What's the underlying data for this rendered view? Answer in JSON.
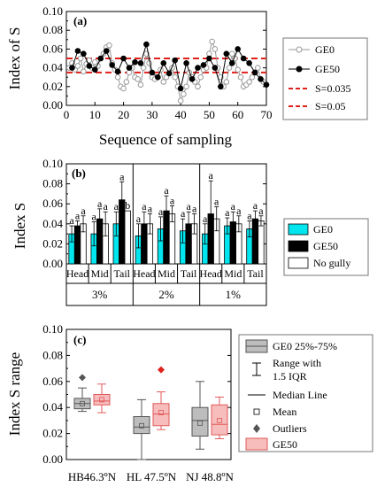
{
  "chart_data": [
    {
      "type": "scatter",
      "panel_label": "(a)",
      "xlabel": "Sequence of sampling",
      "ylabel": "Index of S",
      "xlim": [
        0,
        70
      ],
      "ylim": [
        0,
        0.1
      ],
      "xticks": [
        "0",
        "10",
        "20",
        "30",
        "40",
        "50",
        "60",
        "70"
      ],
      "yticks": [
        "0.00",
        "0.02",
        "0.04",
        "0.06",
        "0.08",
        "0.10"
      ],
      "series": [
        {
          "name": "GE0",
          "marker": "open-circle",
          "x": [
            1,
            2,
            3,
            4,
            5,
            6,
            7,
            8,
            9,
            10,
            11,
            12,
            13,
            14,
            15,
            16,
            17,
            18,
            19,
            20,
            21,
            22,
            23,
            24,
            25,
            26,
            27,
            28,
            29,
            30,
            31,
            32,
            33,
            34,
            35,
            36,
            37,
            38,
            39,
            40,
            41,
            42,
            43,
            44,
            45,
            46,
            47,
            48,
            49,
            50,
            51,
            52,
            53,
            54,
            55,
            56,
            57,
            58,
            59,
            60,
            61,
            62,
            63,
            64,
            65,
            66,
            67,
            68,
            69
          ],
          "y": [
            0.04,
            0.045,
            0.038,
            0.042,
            0.05,
            0.036,
            0.044,
            0.048,
            0.04,
            0.046,
            0.042,
            0.05,
            0.055,
            0.062,
            0.064,
            0.045,
            0.038,
            0.03,
            0.02,
            0.018,
            0.025,
            0.035,
            0.04,
            0.03,
            0.028,
            0.022,
            0.04,
            0.055,
            0.045,
            0.03,
            0.028,
            0.03,
            0.038,
            0.025,
            0.03,
            0.035,
            0.04,
            0.03,
            0.02,
            0.005,
            0.012,
            0.02,
            0.035,
            0.03,
            0.025,
            0.02,
            0.03,
            0.038,
            0.04,
            0.055,
            0.068,
            0.06,
            0.04,
            0.03,
            0.02,
            0.025,
            0.04,
            0.055,
            0.05,
            0.038,
            0.03,
            0.02,
            0.022,
            0.025,
            0.03,
            0.035,
            0.04,
            0.028,
            0.025
          ]
        },
        {
          "name": "GE50",
          "marker": "filled-circle",
          "x": [
            2,
            4,
            6,
            8,
            10,
            12,
            14,
            16,
            18,
            20,
            22,
            24,
            26,
            28,
            30,
            32,
            34,
            36,
            38,
            40,
            42,
            44,
            46,
            48,
            50,
            52,
            54,
            56,
            58,
            60,
            62,
            64,
            66,
            68,
            70
          ],
          "y": [
            0.04,
            0.058,
            0.055,
            0.042,
            0.038,
            0.05,
            0.058,
            0.043,
            0.036,
            0.05,
            0.04,
            0.046,
            0.045,
            0.065,
            0.035,
            0.03,
            0.045,
            0.034,
            0.048,
            0.018,
            0.045,
            0.028,
            0.04,
            0.043,
            0.05,
            0.04,
            0.02,
            0.055,
            0.045,
            0.06,
            0.05,
            0.045,
            0.035,
            0.028,
            0.022
          ]
        }
      ],
      "reference_lines": [
        {
          "name": "S=0.035",
          "y": 0.035,
          "style": "dashed",
          "color": "#e0201b"
        },
        {
          "name": "S=0.05",
          "y": 0.05,
          "style": "dashed",
          "color": "#e0201b"
        }
      ],
      "legend": {
        "placement": "right",
        "entries": [
          "GE0",
          "GE50",
          "S=0.035",
          "S=0.05"
        ]
      }
    },
    {
      "type": "bar",
      "panel_label": "(b)",
      "ylabel": "Index S",
      "ylim": [
        0,
        0.1
      ],
      "yticks": [
        "0.00",
        "0.02",
        "0.04",
        "0.06",
        "0.08",
        "0.10"
      ],
      "groups": [
        "3%",
        "2%",
        "1%"
      ],
      "categories": [
        "Head",
        "Mid",
        "Tail",
        "Head",
        "Mid",
        "Tail",
        "Head",
        "Mid",
        "Tail"
      ],
      "series": [
        {
          "name": "GE0",
          "color": "#00e5ee",
          "values": [
            0.03,
            0.03,
            0.04,
            0.028,
            0.035,
            0.033,
            0.03,
            0.038,
            0.035
          ],
          "errors": [
            0.008,
            0.012,
            0.012,
            0.012,
            0.012,
            0.012,
            0.01,
            0.008,
            0.008
          ],
          "labels": [
            "a",
            "a",
            "a",
            "a",
            "a",
            "a",
            "a",
            "a",
            "a"
          ]
        },
        {
          "name": "GE50",
          "color": "#000000",
          "values": [
            0.038,
            0.045,
            0.064,
            0.04,
            0.053,
            0.04,
            0.05,
            0.042,
            0.045
          ],
          "errors": [
            0.005,
            0.01,
            0.018,
            0.012,
            0.015,
            0.012,
            0.033,
            0.01,
            0.008
          ],
          "labels": [
            "a",
            "a",
            "a",
            "a",
            "a",
            "a",
            "a",
            "a",
            "a"
          ]
        },
        {
          "name": "No gully",
          "color": "#ffffff",
          "values": [
            0.04,
            0.04,
            0.053,
            0.04,
            0.05,
            0.04,
            0.045,
            0.04,
            0.043
          ],
          "errors": [
            0.008,
            0.012,
            0.0,
            0.01,
            0.008,
            0.01,
            0.012,
            0.008,
            0.005
          ],
          "labels": [
            "a",
            "a",
            "b",
            "a",
            "a",
            "a",
            "a",
            "a",
            "a"
          ]
        }
      ],
      "legend": {
        "placement": "right",
        "entries": [
          "GE0",
          "GE50",
          "No gully"
        ]
      }
    },
    {
      "type": "box",
      "panel_label": "(c)",
      "ylabel": "Index S range",
      "ylim": [
        0,
        0.1
      ],
      "yticks": [
        "0.00",
        "0.02",
        "0.04",
        "0.06",
        "0.08",
        "0.10"
      ],
      "categories": [
        "HB46.3ºN",
        "HL 47.5ºN",
        "NJ 48.8ºN"
      ],
      "series": [
        {
          "name": "GE0",
          "fill": "#bdbdbd",
          "stroke": "#555555",
          "boxes": [
            {
              "q1": 0.039,
              "median": 0.043,
              "q3": 0.047,
              "whisker_low": 0.037,
              "whisker_high": 0.055,
              "mean": 0.043,
              "outliers": [
                0.063
              ]
            },
            {
              "q1": 0.02,
              "median": 0.025,
              "q3": 0.033,
              "whisker_low": 0.0,
              "whisker_high": 0.046,
              "mean": 0.026,
              "outliers": []
            },
            {
              "q1": 0.018,
              "median": 0.03,
              "q3": 0.04,
              "whisker_low": 0.008,
              "whisker_high": 0.06,
              "mean": 0.028,
              "outliers": []
            }
          ]
        },
        {
          "name": "GE50",
          "fill": "#f7bcbc",
          "stroke": "#e05a5a",
          "boxes": [
            {
              "q1": 0.042,
              "median": 0.045,
              "q3": 0.05,
              "whisker_low": 0.036,
              "whisker_high": 0.058,
              "mean": 0.046,
              "outliers": []
            },
            {
              "q1": 0.026,
              "median": 0.035,
              "q3": 0.043,
              "whisker_low": 0.023,
              "whisker_high": 0.052,
              "mean": 0.036,
              "outliers": [
                0.069
              ]
            },
            {
              "q1": 0.019,
              "median": 0.027,
              "q3": 0.042,
              "whisker_low": 0.016,
              "whisker_high": 0.048,
              "mean": 0.03,
              "outliers": []
            }
          ]
        }
      ],
      "legend": {
        "placement": "right",
        "entries": [
          "GE0 25%-75%",
          "Range with",
          "1.5 IQR",
          "Median Line",
          "Mean",
          "Outliers",
          "GE50"
        ]
      }
    }
  ]
}
